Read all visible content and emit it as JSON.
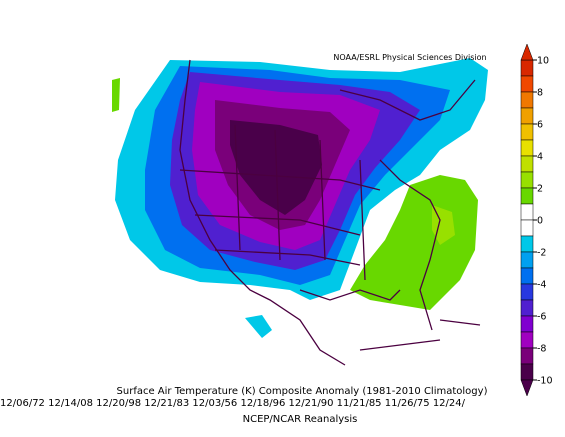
{
  "header": {
    "credit": "NOAA/ESRL Physical Sciences Division"
  },
  "colorbar": {
    "bounds": [
      10,
      9,
      8,
      7,
      6,
      5,
      4,
      3,
      2,
      1,
      0,
      -1,
      -2,
      -3,
      -4,
      -5,
      -6,
      -7,
      -8,
      -9,
      -10
    ],
    "colors": [
      "#d82800",
      "#f04800",
      "#f07800",
      "#f0a000",
      "#f0c000",
      "#e8e000",
      "#c0e000",
      "#98e000",
      "#68d800",
      "#ffffff",
      "#ffffff",
      "#00c8e8",
      "#00a0f0",
      "#0070f0",
      "#2838e0",
      "#5020d0",
      "#8000d0",
      "#a000c0",
      "#7a007a",
      "#4a004a"
    ],
    "ticks": [
      10,
      8,
      6,
      4,
      2,
      0,
      -2,
      -4,
      -6,
      -8,
      -10
    ]
  },
  "caption": {
    "title": "Surface Air Temperature (K) Composite Anomaly (1981-2010 Climatology)",
    "dates": "12/06/72 12/14/08 12/20/98 12/21/83 12/03/56 12/18/96 12/21/90 11/21/85 11/26/75 12/24/",
    "source": "NCEP/NCAR Reanalysis"
  }
}
